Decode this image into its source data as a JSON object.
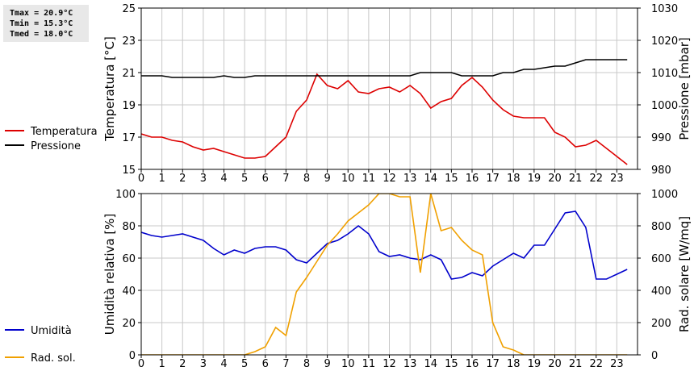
{
  "stats": {
    "tmax": "Tmax = 20.9°C",
    "tmin": "Tmin = 15.3°C",
    "tmed": "Tmed = 18.0°C"
  },
  "colors": {
    "temperature": "#dd0000",
    "pressure": "#000000",
    "humidity": "#0000cc",
    "radiation": "#f0a000",
    "grid": "#c8c8c8"
  },
  "chart_data": [
    {
      "type": "line",
      "xlim": [
        0,
        24
      ],
      "xticks": [
        0,
        1,
        2,
        3,
        4,
        5,
        6,
        7,
        8,
        9,
        10,
        11,
        12,
        13,
        14,
        15,
        16,
        17,
        18,
        19,
        20,
        21,
        22,
        23
      ],
      "grid": true,
      "legend_position": "left",
      "ylabel": "Temperatura [°C]",
      "ylim": [
        15,
        25
      ],
      "yticks": [
        15,
        17,
        19,
        21,
        23,
        25
      ],
      "y2label": "Pressione [mbar]",
      "y2lim": [
        980,
        1030
      ],
      "y2ticks": [
        980,
        990,
        1000,
        1010,
        1020,
        1030
      ],
      "series": [
        {
          "name": "Temperatura",
          "axis": "left",
          "color": "#dd0000",
          "x": [
            0,
            0.5,
            1,
            1.5,
            2,
            2.5,
            3,
            3.5,
            4,
            4.5,
            5,
            5.5,
            6,
            6.5,
            7,
            7.5,
            8,
            8.5,
            9,
            9.5,
            10,
            10.5,
            11,
            11.5,
            12,
            12.5,
            13,
            13.5,
            14,
            14.5,
            15,
            15.5,
            16,
            16.5,
            17,
            17.5,
            18,
            18.5,
            19,
            19.5,
            20,
            20.5,
            21,
            21.5,
            22,
            22.5,
            23,
            23.5
          ],
          "values": [
            17.2,
            17.0,
            17.0,
            16.8,
            16.7,
            16.4,
            16.2,
            16.3,
            16.1,
            15.9,
            15.7,
            15.7,
            15.8,
            16.4,
            17.0,
            18.6,
            19.3,
            20.9,
            20.2,
            20.0,
            20.5,
            19.8,
            19.7,
            20.0,
            20.1,
            19.8,
            20.2,
            19.7,
            18.8,
            19.2,
            19.4,
            20.2,
            20.7,
            20.1,
            19.3,
            18.7,
            18.3,
            18.2,
            18.2,
            18.2,
            17.3,
            17.0,
            16.4,
            16.5,
            16.8,
            16.3,
            15.8,
            15.3
          ]
        },
        {
          "name": "Pressione",
          "axis": "right",
          "color": "#000000",
          "x": [
            0,
            1,
            1.5,
            3.5,
            4,
            4.5,
            5,
            5.5,
            13,
            13.5,
            15,
            15.5,
            17,
            17.5,
            18,
            18.5,
            19,
            20,
            20.5,
            21,
            21.5,
            23.5
          ],
          "values": [
            1009,
            1009,
            1008.5,
            1008.5,
            1009,
            1008.5,
            1008.5,
            1009,
            1009,
            1010,
            1010,
            1009,
            1009,
            1010,
            1010,
            1011,
            1011,
            1012,
            1012,
            1013,
            1014,
            1014
          ]
        }
      ]
    },
    {
      "type": "line",
      "xlim": [
        0,
        24
      ],
      "xticks": [
        0,
        1,
        2,
        3,
        4,
        5,
        6,
        7,
        8,
        9,
        10,
        11,
        12,
        13,
        14,
        15,
        16,
        17,
        18,
        19,
        20,
        21,
        22,
        23
      ],
      "grid": true,
      "legend_position": "left",
      "ylabel": "Umidità relativa [%]",
      "ylim": [
        0,
        100
      ],
      "yticks": [
        0,
        20,
        40,
        60,
        80,
        100
      ],
      "y2label": "Rad. solare [W/mq]",
      "y2lim": [
        0,
        1000
      ],
      "y2ticks": [
        0,
        200,
        400,
        600,
        800,
        1000
      ],
      "series": [
        {
          "name": "Umidità",
          "axis": "left",
          "color": "#0000cc",
          "x": [
            0,
            0.5,
            1,
            1.5,
            2,
            2.5,
            3,
            3.5,
            4,
            4.5,
            5,
            5.5,
            6,
            6.5,
            7,
            7.5,
            8,
            8.5,
            9,
            9.5,
            10,
            10.5,
            11,
            11.5,
            12,
            12.5,
            13,
            13.5,
            14,
            14.5,
            15,
            15.5,
            16,
            16.5,
            17,
            17.5,
            18,
            18.5,
            19,
            19.5,
            20,
            20.5,
            21,
            21.5,
            22,
            22.5,
            23,
            23.5
          ],
          "values": [
            76,
            74,
            73,
            74,
            75,
            73,
            71,
            66,
            62,
            65,
            63,
            66,
            67,
            67,
            65,
            59,
            57,
            63,
            69,
            71,
            75,
            80,
            75,
            64,
            61,
            62,
            60,
            59,
            62,
            59,
            47,
            48,
            51,
            49,
            55,
            59,
            63,
            60,
            68,
            68,
            78,
            88,
            89,
            79,
            47,
            47,
            50,
            53
          ]
        },
        {
          "name": "Rad. sol.",
          "axis": "right",
          "color": "#f0a000",
          "x": [
            0,
            5,
            5.5,
            6,
            6.5,
            6.8,
            7,
            7.5,
            8,
            8.5,
            9,
            9.5,
            10,
            10.5,
            11,
            11.5,
            12,
            12.5,
            13,
            13.5,
            14,
            14.5,
            15,
            15.5,
            16,
            16.5,
            17,
            17.5,
            18,
            18.5,
            19,
            23.5
          ],
          "values": [
            0,
            0,
            20,
            50,
            170,
            140,
            120,
            390,
            480,
            580,
            680,
            750,
            830,
            880,
            930,
            1000,
            1000,
            980,
            980,
            510,
            1000,
            770,
            790,
            710,
            650,
            620,
            200,
            50,
            30,
            0,
            0,
            0
          ]
        }
      ]
    }
  ]
}
